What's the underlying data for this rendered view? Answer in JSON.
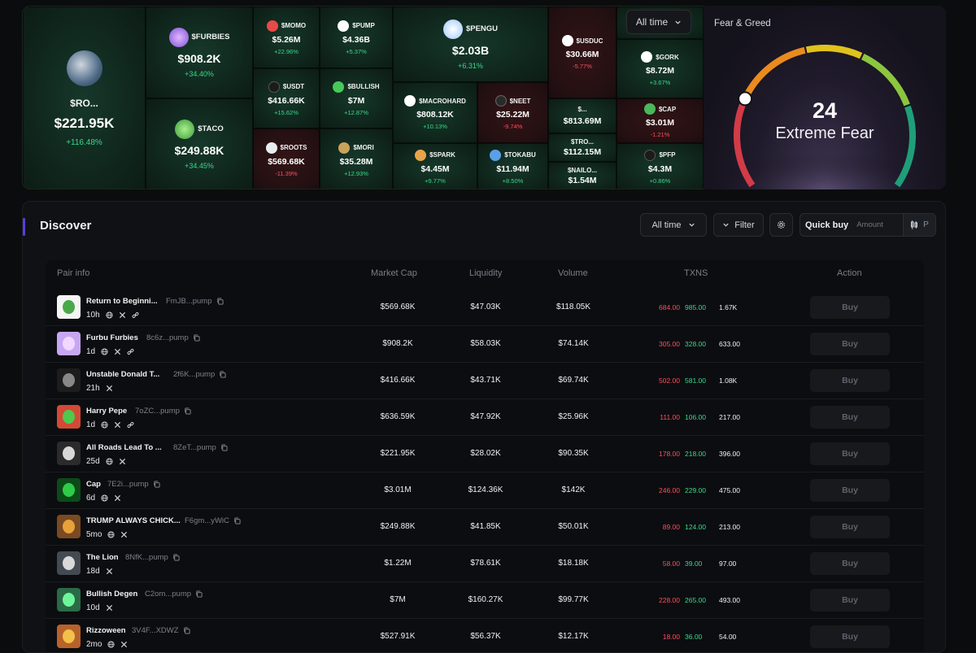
{
  "heatmap": {
    "tiles": [
      {
        "name": "$RO...",
        "mc": "$221.95K",
        "change": "+116.48%",
        "neg": false
      },
      {
        "name": "$FURBIES",
        "mc": "$908.2K",
        "change": "+34.40%",
        "neg": false
      },
      {
        "name": "$TACO",
        "mc": "$249.88K",
        "change": "+34.45%",
        "neg": false
      },
      {
        "name": "$MOMO",
        "mc": "$5.26M",
        "change": "+22.96%",
        "neg": false
      },
      {
        "name": "$PUMP",
        "mc": "$4.36B",
        "change": "+5.37%",
        "neg": false
      },
      {
        "name": "$USDT",
        "mc": "$416.66K",
        "change": "+15.62%",
        "neg": false
      },
      {
        "name": "$BULLISH",
        "mc": "$7M",
        "change": "+12.87%",
        "neg": false
      },
      {
        "name": "$ROOTS",
        "mc": "$569.68K",
        "change": "-11.39%",
        "neg": true
      },
      {
        "name": "$MORI",
        "mc": "$35.28M",
        "change": "+12.93%",
        "neg": false
      },
      {
        "name": "$PENGU",
        "mc": "$2.03B",
        "change": "+6.31%",
        "neg": false
      },
      {
        "name": "$MACROHARD",
        "mc": "$808.12K",
        "change": "+10.13%",
        "neg": false
      },
      {
        "name": "$NEET",
        "mc": "$25.22M",
        "change": "-9.74%",
        "neg": true
      },
      {
        "name": "$SPARK",
        "mc": "$4.45M",
        "change": "+9.77%",
        "neg": false
      },
      {
        "name": "$TOKABU",
        "mc": "$11.94M",
        "change": "+8.50%",
        "neg": false
      },
      {
        "name": "$USDUC",
        "mc": "$30.66M",
        "change": "-5.77%",
        "neg": true
      },
      {
        "name": "$...",
        "mc": "$813.69M",
        "change": "",
        "neg": false
      },
      {
        "name": "$TRO...",
        "mc": "$112.15M",
        "change": "",
        "neg": false
      },
      {
        "name": "$NAILO...",
        "mc": "$1.54M",
        "change": "",
        "neg": false
      },
      {
        "name": "$GORK",
        "mc": "$8.72M",
        "change": "+3.67%",
        "neg": false
      },
      {
        "name": "$CAP",
        "mc": "$3.01M",
        "change": "-1.21%",
        "neg": true
      },
      {
        "name": "$PFP",
        "mc": "$4.3M",
        "change": "+0.86%",
        "neg": false
      }
    ],
    "time_filter": "All time"
  },
  "fear_greed": {
    "title": "Fear & Greed",
    "value": "24",
    "label": "Extreme Fear",
    "level": 0.24
  },
  "discover": {
    "title": "Discover",
    "time_filter": "All time",
    "filter_label": "Filter",
    "quick_buy_label": "Quick buy",
    "amount_placeholder": "Amount",
    "preset": "P",
    "columns": [
      "Pair info",
      "Market Cap",
      "Liquidity",
      "Volume",
      "TXNS",
      "Action"
    ],
    "rows": [
      {
        "name": "Return to Beginni...",
        "ca": "FmJB...pump",
        "age": "10h",
        "mc": "$569.68K",
        "liq": "$47.03K",
        "vol": "$118.05K",
        "sells": "684.00",
        "buys": "985.00",
        "total": "1.67K",
        "buy": "Buy"
      },
      {
        "name": "Furbu Furbies",
        "ca": "8c6z...pump",
        "age": "1d",
        "mc": "$908.2K",
        "liq": "$58.03K",
        "vol": "$74.14K",
        "sells": "305.00",
        "buys": "328.00",
        "total": "633.00",
        "buy": "Buy"
      },
      {
        "name": "Unstable Donald T...",
        "ca": "2f6K...pump",
        "age": "21h",
        "mc": "$416.66K",
        "liq": "$43.71K",
        "vol": "$69.74K",
        "sells": "502.00",
        "buys": "581.00",
        "total": "1.08K",
        "buy": "Buy"
      },
      {
        "name": "Harry Pepe",
        "ca": "7oZC...pump",
        "age": "1d",
        "mc": "$636.59K",
        "liq": "$47.92K",
        "vol": "$25.96K",
        "sells": "111.00",
        "buys": "106.00",
        "total": "217.00",
        "buy": "Buy"
      },
      {
        "name": "All Roads Lead To ...",
        "ca": "8ZeT...pump",
        "age": "25d",
        "mc": "$221.95K",
        "liq": "$28.02K",
        "vol": "$90.35K",
        "sells": "178.00",
        "buys": "218.00",
        "total": "396.00",
        "buy": "Buy"
      },
      {
        "name": "Cap",
        "ca": "7E2i...pump",
        "age": "6d",
        "mc": "$3.01M",
        "liq": "$124.36K",
        "vol": "$142K",
        "sells": "246.00",
        "buys": "229.00",
        "total": "475.00",
        "buy": "Buy"
      },
      {
        "name": "TRUMP ALWAYS CHICK...",
        "ca": "F6gm...yWiC",
        "age": "5mo",
        "mc": "$249.88K",
        "liq": "$41.85K",
        "vol": "$50.01K",
        "sells": "89.00",
        "buys": "124.00",
        "total": "213.00",
        "buy": "Buy"
      },
      {
        "name": "The Lion",
        "ca": "8NfK...pump",
        "age": "18d",
        "mc": "$1.22M",
        "liq": "$78.61K",
        "vol": "$18.18K",
        "sells": "58.00",
        "buys": "39.00",
        "total": "97.00",
        "buy": "Buy"
      },
      {
        "name": "Bullish Degen",
        "ca": "C2om...pump",
        "age": "10d",
        "mc": "$7M",
        "liq": "$160.27K",
        "vol": "$99.77K",
        "sells": "228.00",
        "buys": "265.00",
        "total": "493.00",
        "buy": "Buy"
      },
      {
        "name": "Rizzoween",
        "ca": "3V4F...XDWZ",
        "age": "2mo",
        "mc": "$527.91K",
        "liq": "$56.37K",
        "vol": "$12.17K",
        "sells": "18.00",
        "buys": "36.00",
        "total": "54.00",
        "buy": "Buy"
      }
    ]
  },
  "colors": {
    "positive": "#39d98a",
    "negative": "#ff4d5e",
    "accent": "#5a3fd6"
  }
}
